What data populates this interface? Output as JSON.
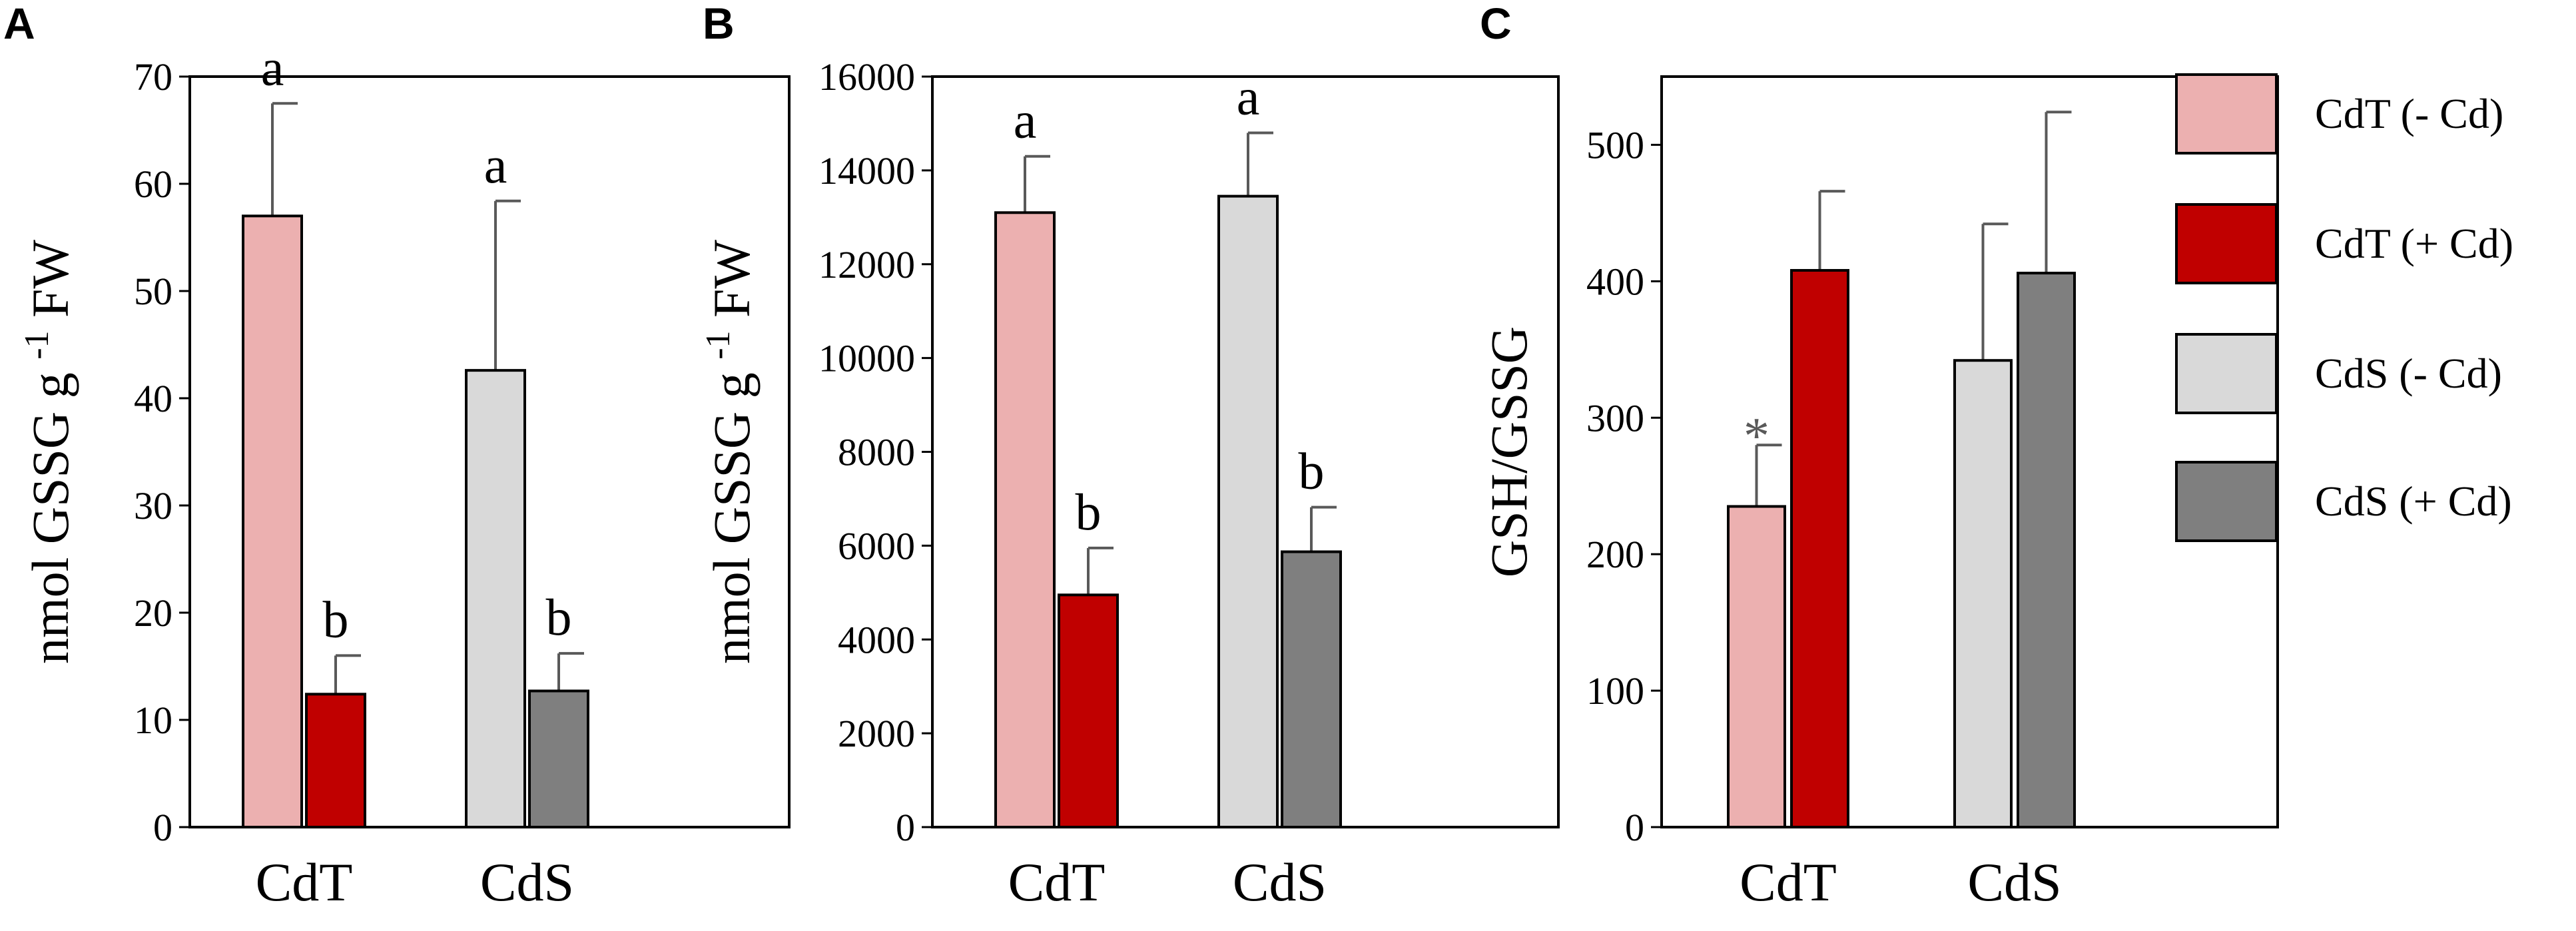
{
  "colors": {
    "cdt_minus": "#ecb0b0",
    "cdt_plus": "#c00000",
    "cds_minus": "#d9d9d9",
    "cds_plus": "#7f7f7f",
    "axis": "#000000",
    "error_bar": "#595959"
  },
  "legend": [
    {
      "label": "CdT (- Cd)",
      "color_key": "cdt_minus"
    },
    {
      "label": "CdT (+ Cd)",
      "color_key": "cdt_plus"
    },
    {
      "label": "CdS (- Cd)",
      "color_key": "cds_minus"
    },
    {
      "label": "CdS (+ Cd)",
      "color_key": "cds_plus"
    }
  ],
  "chart_data": [
    {
      "panel_label": "A",
      "type": "bar",
      "categories": [
        "CdT",
        "CdS"
      ],
      "ylabel_parts": [
        "nmol GSSG g ",
        "-1",
        " FW"
      ],
      "ylim": [
        0,
        70
      ],
      "ytick_step": 10,
      "bars": [
        {
          "category": "CdT",
          "series": "CdT (- Cd)",
          "color_key": "cdt_minus",
          "value": 57.0,
          "error": 10.5,
          "annotation": "a"
        },
        {
          "category": "CdT",
          "series": "CdT (+ Cd)",
          "color_key": "cdt_plus",
          "value": 12.4,
          "error": 3.6,
          "annotation": "b"
        },
        {
          "category": "CdS",
          "series": "CdS (- Cd)",
          "color_key": "cds_minus",
          "value": 42.6,
          "error": 15.8,
          "annotation": "a"
        },
        {
          "category": "CdS",
          "series": "CdS (+ Cd)",
          "color_key": "cds_plus",
          "value": 12.7,
          "error": 3.5,
          "annotation": "b"
        }
      ]
    },
    {
      "panel_label": "B",
      "type": "bar",
      "categories": [
        "CdT",
        "CdS"
      ],
      "ylabel_parts": [
        "nmol GSSG g ",
        "-1",
        " FW"
      ],
      "ylim": [
        0,
        16000
      ],
      "ytick_step": 2000,
      "bars": [
        {
          "category": "CdT",
          "series": "CdT (- Cd)",
          "color_key": "cdt_minus",
          "value": 13100,
          "error": 1200,
          "annotation": "a"
        },
        {
          "category": "CdT",
          "series": "CdT (+ Cd)",
          "color_key": "cdt_plus",
          "value": 4950,
          "error": 1000,
          "annotation": "b"
        },
        {
          "category": "CdS",
          "series": "CdS (- Cd)",
          "color_key": "cds_minus",
          "value": 13450,
          "error": 1350,
          "annotation": "a"
        },
        {
          "category": "CdS",
          "series": "CdS (+ Cd)",
          "color_key": "cds_plus",
          "value": 5870,
          "error": 950,
          "annotation": "b"
        }
      ]
    },
    {
      "panel_label": "C",
      "type": "bar",
      "categories": [
        "CdT",
        "CdS"
      ],
      "ylabel_parts": [
        "GSH/GSSG",
        "",
        ""
      ],
      "ylim": [
        0,
        550
      ],
      "ytick_step": 100,
      "bars": [
        {
          "category": "CdT",
          "series": "CdT (- Cd)",
          "color_key": "cdt_minus",
          "value": 235,
          "error": 45,
          "annotation": "*"
        },
        {
          "category": "CdT",
          "series": "CdT (+ Cd)",
          "color_key": "cdt_plus",
          "value": 408,
          "error": 58,
          "annotation": ""
        },
        {
          "category": "CdS",
          "series": "CdS (- Cd)",
          "color_key": "cds_minus",
          "value": 342,
          "error": 100,
          "annotation": ""
        },
        {
          "category": "CdS",
          "series": "CdS (+ Cd)",
          "color_key": "cds_plus",
          "value": 406,
          "error": 118,
          "annotation": ""
        }
      ]
    }
  ]
}
